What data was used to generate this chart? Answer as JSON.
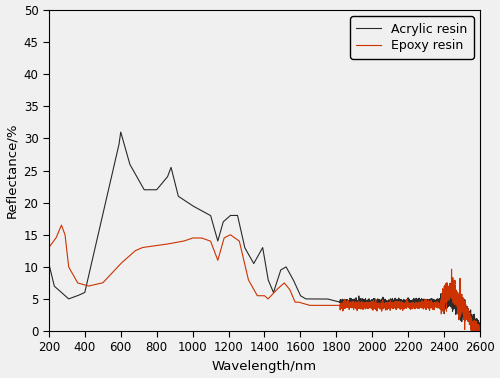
{
  "title": "",
  "xlabel": "Wavelength/nm",
  "ylabel": "Reflectance/%",
  "xlim": [
    200,
    2600
  ],
  "ylim": [
    0,
    50
  ],
  "xticks": [
    200,
    400,
    600,
    800,
    1000,
    1200,
    1400,
    1600,
    1800,
    2000,
    2200,
    2400,
    2600
  ],
  "yticks": [
    0,
    5,
    10,
    15,
    20,
    25,
    30,
    35,
    40,
    45,
    50
  ],
  "acrylic_color": "#2a2a2a",
  "epoxy_color": "#cc3300",
  "legend_labels": [
    "Acrylic resin",
    "Epoxy resin"
  ],
  "background_color": "#f0f0f0",
  "linewidth": 0.8
}
